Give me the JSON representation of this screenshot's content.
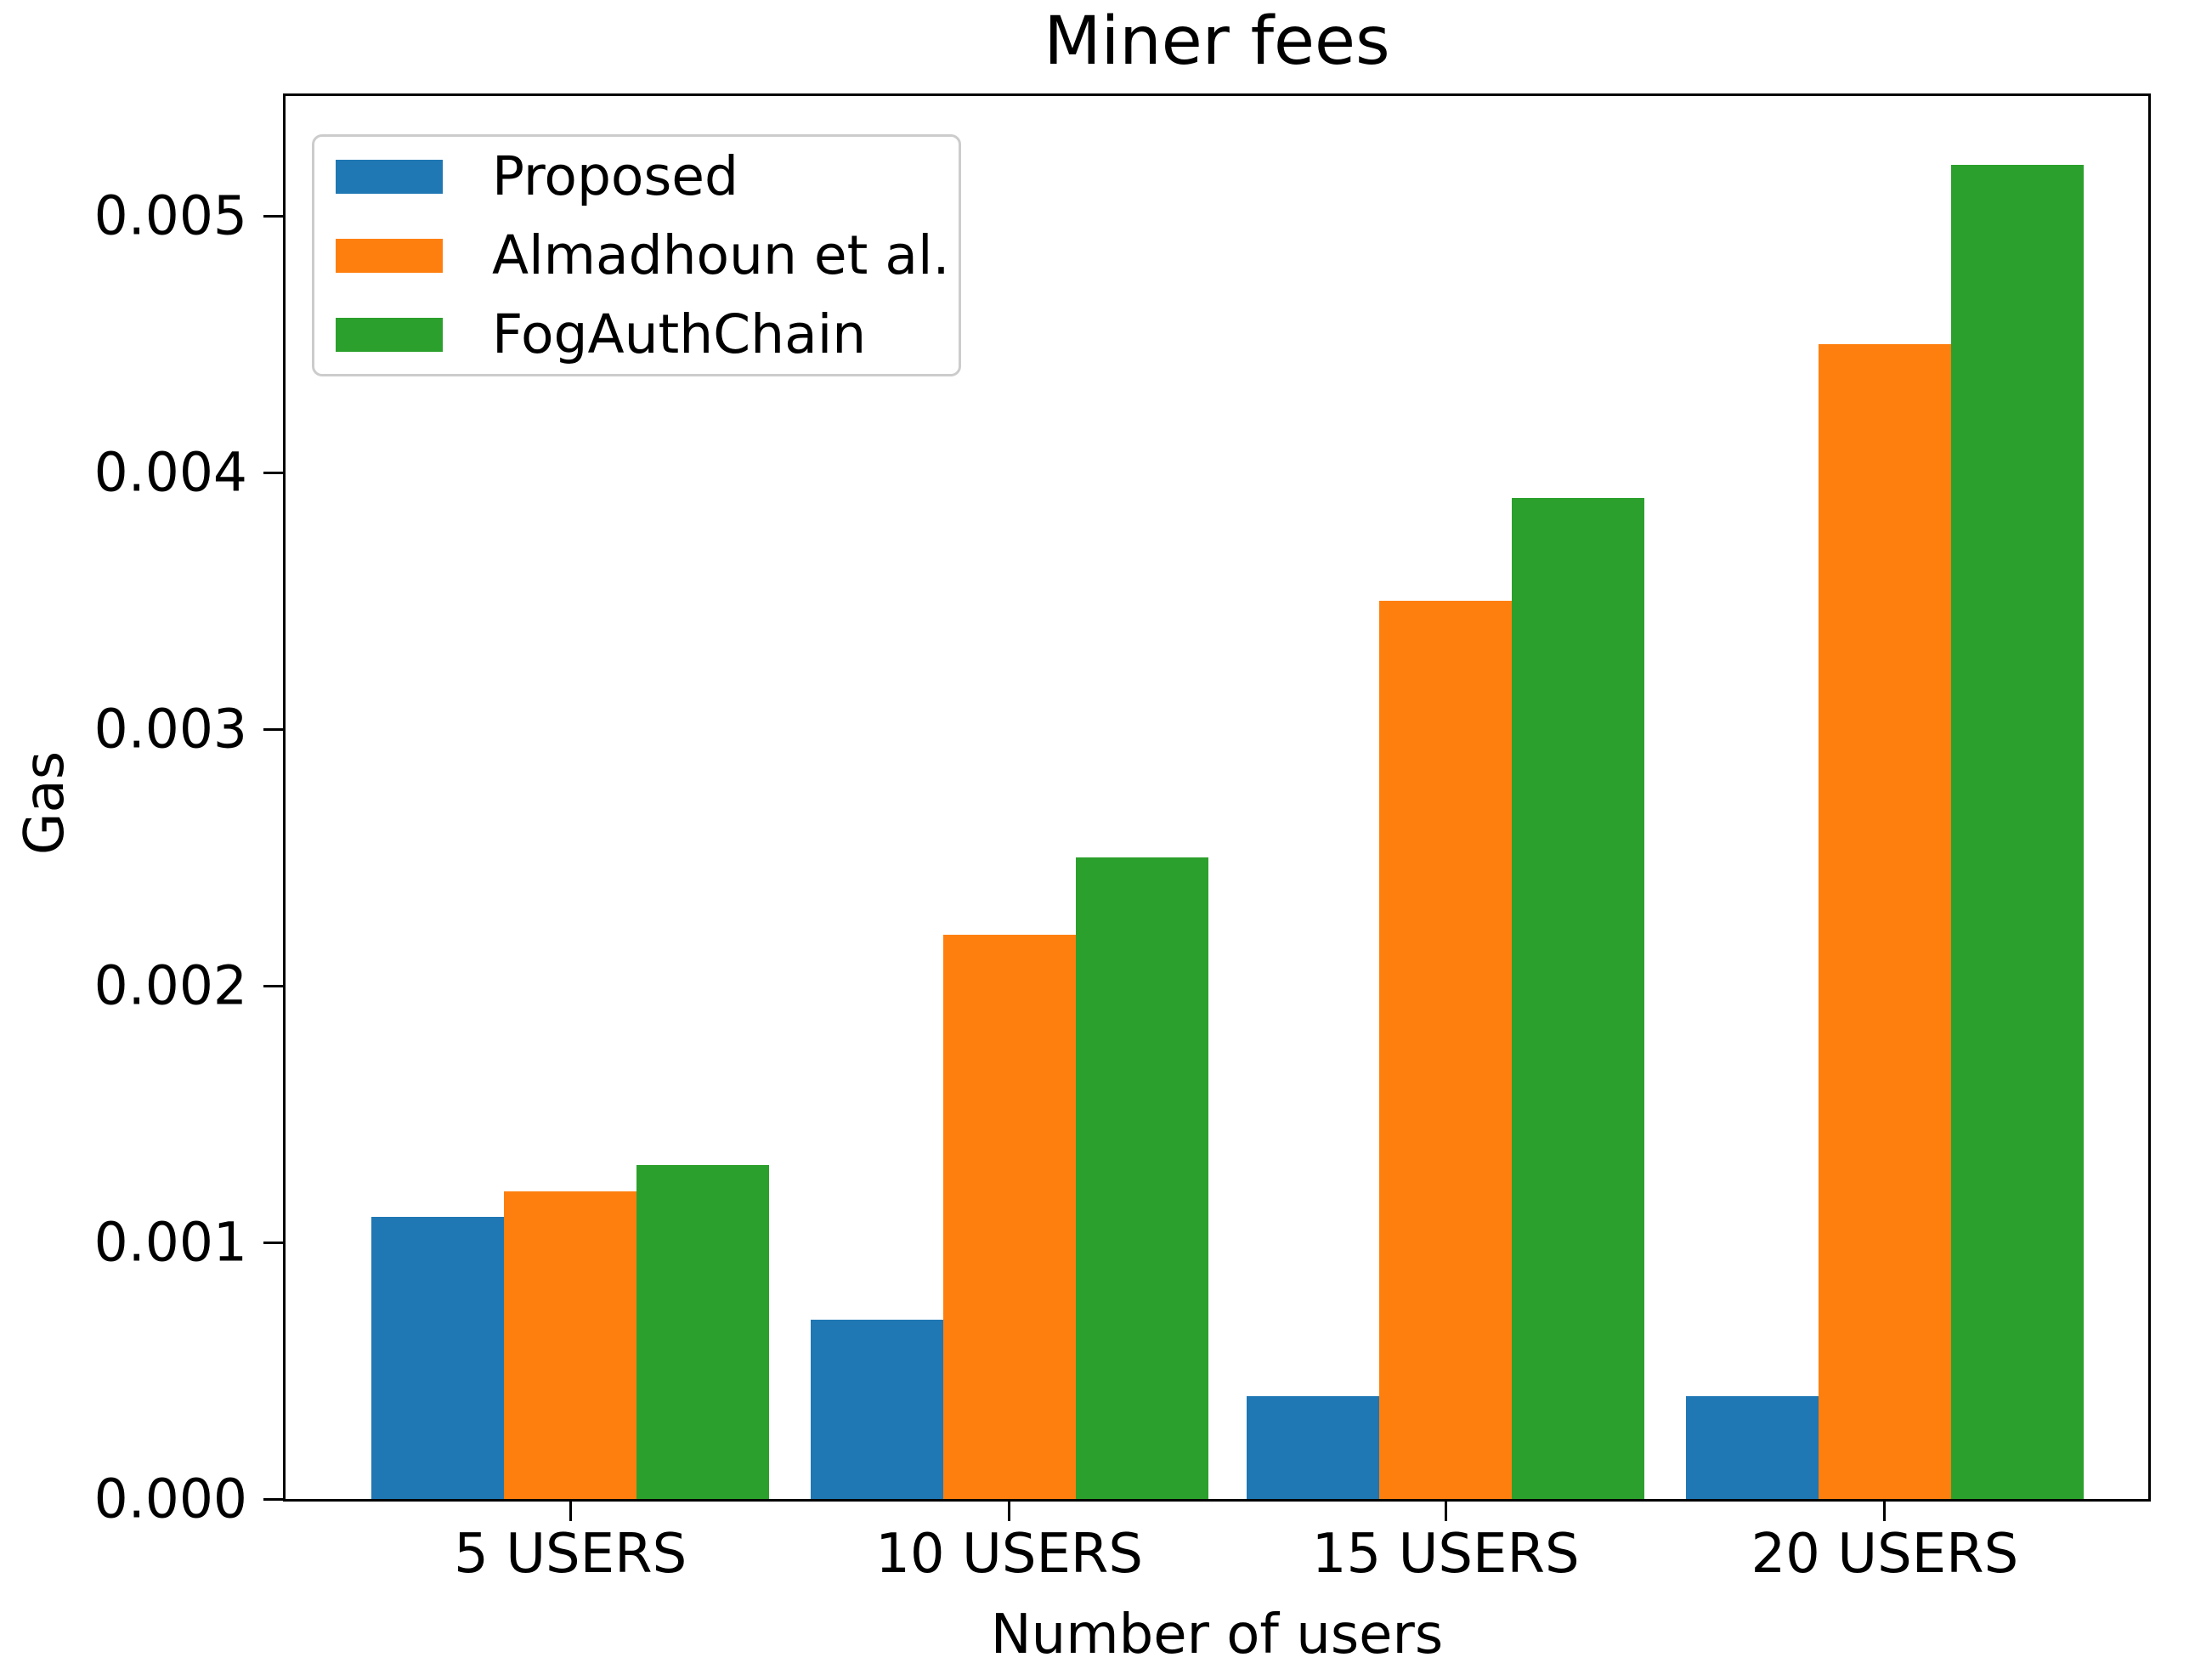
{
  "title": "Miner fees",
  "chart_data": {
    "type": "bar",
    "title": "Miner fees",
    "xlabel": "Number of users",
    "ylabel": "Gas",
    "categories": [
      "5 USERS",
      "10 USERS",
      "15 USERS",
      "20 USERS"
    ],
    "series": [
      {
        "name": "Proposed",
        "color": "#1f77b4",
        "values": [
          0.0011,
          0.0007,
          0.0004,
          0.0004
        ]
      },
      {
        "name": "Almadhoun et al.",
        "color": "#ff7f0e",
        "values": [
          0.0012,
          0.0022,
          0.0035,
          0.0045
        ]
      },
      {
        "name": "FogAuthChain",
        "color": "#2ca02c",
        "values": [
          0.0013,
          0.0025,
          0.0039,
          0.0052
        ]
      }
    ],
    "yticks": [
      {
        "value": 0.0,
        "label": "0.000"
      },
      {
        "value": 0.001,
        "label": "0.001"
      },
      {
        "value": 0.002,
        "label": "0.002"
      },
      {
        "value": 0.003,
        "label": "0.003"
      },
      {
        "value": 0.004,
        "label": "0.004"
      },
      {
        "value": 0.005,
        "label": "0.005"
      }
    ],
    "ylim": [
      0,
      0.005468
    ],
    "legend_position": "upper left",
    "grid": false,
    "colors": {
      "axis": "#000000",
      "legend_border": "#cccccc",
      "background": "#ffffff"
    }
  }
}
